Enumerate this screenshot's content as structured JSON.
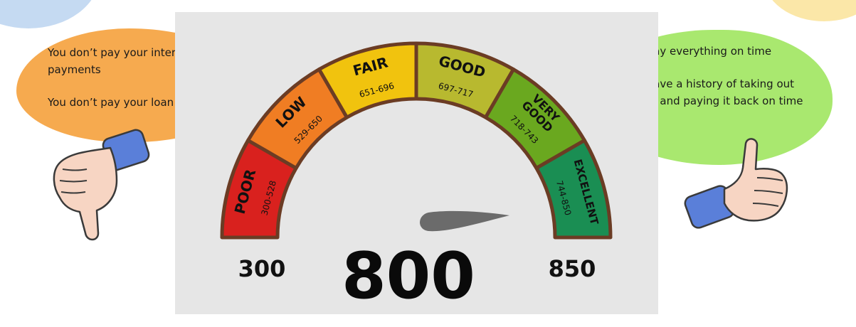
{
  "left_bubble": {
    "line1": "You don’t pay your interest payments",
    "line2": "You don’t pay your loan"
  },
  "right_bubble": {
    "line1": "You pay everything on time",
    "line2": "You have a history of taking out loans, and paying it back on time"
  },
  "gauge": {
    "min_label": "300",
    "max_label": "850",
    "score": "800",
    "segments": [
      {
        "label": "POOR",
        "range": "300-528",
        "color": "#d9211e"
      },
      {
        "label": "LOW",
        "range": "529-650",
        "color": "#f07d23"
      },
      {
        "label": "FAIR",
        "range": "651-696",
        "color": "#f1c30e"
      },
      {
        "label": "GOOD",
        "range": "697-717",
        "color": "#b8b92f"
      },
      {
        "label": "VERY GOOD",
        "range": "718-743",
        "color": "#6aa81f"
      },
      {
        "label": "EXCELLENT",
        "range": "744-850",
        "color": "#1a8e53"
      }
    ],
    "colors": {
      "outline": "#6b3c24",
      "needle": "#6b6b6b",
      "panel": "#e6e6e6"
    }
  },
  "icons": {
    "left_hand": "thumbs-down-icon",
    "right_hand": "thumbs-up-icon"
  }
}
